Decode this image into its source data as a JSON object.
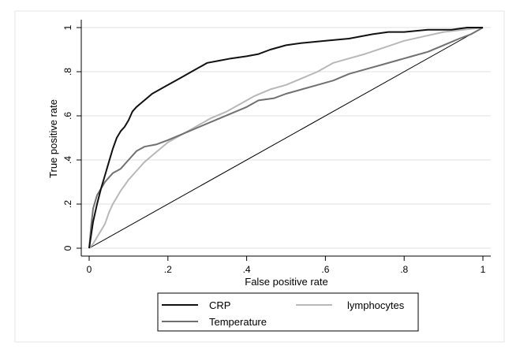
{
  "chart_data": {
    "type": "line",
    "title": "",
    "xlabel": "False positive rate",
    "ylabel": "True positive rate",
    "xlim": [
      0,
      1
    ],
    "ylim": [
      0,
      1
    ],
    "xticks": [
      0,
      0.2,
      0.4,
      0.6,
      0.8,
      1
    ],
    "yticks": [
      0,
      0.2,
      0.4,
      0.6,
      0.8,
      1
    ],
    "xtick_labels": [
      "0",
      ".2",
      ".4",
      ".6",
      ".8",
      "1"
    ],
    "ytick_labels": [
      "0",
      ".2",
      ".4",
      ".6",
      ".8",
      "1"
    ],
    "grid": true,
    "legend_position": "bottom",
    "reference_line": {
      "x": [
        0,
        1
      ],
      "y": [
        0,
        1
      ],
      "color": "#000000"
    },
    "series": [
      {
        "name": "CRP",
        "color": "#111111",
        "x": [
          0,
          0.01,
          0.02,
          0.03,
          0.04,
          0.05,
          0.06,
          0.07,
          0.08,
          0.09,
          0.1,
          0.11,
          0.12,
          0.14,
          0.16,
          0.18,
          0.2,
          0.22,
          0.24,
          0.26,
          0.28,
          0.3,
          0.33,
          0.36,
          0.4,
          0.43,
          0.46,
          0.5,
          0.54,
          0.6,
          0.66,
          0.72,
          0.76,
          0.8,
          0.86,
          0.92,
          0.96,
          1
        ],
        "y": [
          0,
          0.12,
          0.2,
          0.27,
          0.33,
          0.39,
          0.45,
          0.5,
          0.53,
          0.55,
          0.58,
          0.62,
          0.64,
          0.67,
          0.7,
          0.72,
          0.74,
          0.76,
          0.78,
          0.8,
          0.82,
          0.84,
          0.85,
          0.86,
          0.87,
          0.88,
          0.9,
          0.92,
          0.93,
          0.94,
          0.95,
          0.97,
          0.98,
          0.98,
          0.99,
          0.99,
          1.0,
          1.0
        ]
      },
      {
        "name": "lymphocytes",
        "color": "#b8b8b8",
        "x": [
          0,
          0.01,
          0.02,
          0.03,
          0.04,
          0.05,
          0.06,
          0.07,
          0.08,
          0.1,
          0.12,
          0.14,
          0.16,
          0.18,
          0.2,
          0.22,
          0.25,
          0.28,
          0.31,
          0.35,
          0.38,
          0.42,
          0.46,
          0.5,
          0.54,
          0.58,
          0.62,
          0.66,
          0.7,
          0.75,
          0.8,
          0.85,
          0.9,
          0.95,
          1
        ],
        "y": [
          0,
          0.02,
          0.05,
          0.08,
          0.11,
          0.16,
          0.2,
          0.23,
          0.26,
          0.31,
          0.35,
          0.39,
          0.42,
          0.45,
          0.48,
          0.5,
          0.53,
          0.56,
          0.59,
          0.62,
          0.65,
          0.69,
          0.72,
          0.74,
          0.77,
          0.8,
          0.84,
          0.86,
          0.88,
          0.91,
          0.94,
          0.96,
          0.98,
          0.99,
          1.0
        ]
      },
      {
        "name": "Temperature",
        "color": "#707070",
        "x": [
          0,
          0.005,
          0.01,
          0.02,
          0.03,
          0.04,
          0.05,
          0.06,
          0.08,
          0.1,
          0.12,
          0.14,
          0.17,
          0.2,
          0.24,
          0.28,
          0.32,
          0.36,
          0.4,
          0.43,
          0.47,
          0.5,
          0.54,
          0.58,
          0.62,
          0.66,
          0.7,
          0.74,
          0.78,
          0.82,
          0.86,
          0.9,
          0.94,
          0.97,
          1
        ],
        "y": [
          0,
          0.1,
          0.18,
          0.24,
          0.27,
          0.3,
          0.32,
          0.34,
          0.36,
          0.4,
          0.44,
          0.46,
          0.47,
          0.49,
          0.52,
          0.55,
          0.58,
          0.61,
          0.64,
          0.67,
          0.68,
          0.7,
          0.72,
          0.74,
          0.76,
          0.79,
          0.81,
          0.83,
          0.85,
          0.87,
          0.89,
          0.92,
          0.95,
          0.97,
          1.0
        ]
      }
    ]
  }
}
